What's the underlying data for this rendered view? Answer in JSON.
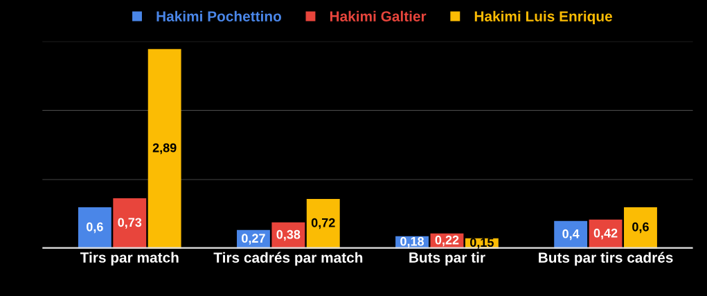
{
  "chart_data": {
    "type": "bar",
    "categories": [
      "Tirs par match",
      "Tirs cadrés par match",
      "Buts par tir",
      "Buts par tirs cadrés"
    ],
    "series": [
      {
        "name": "Hakimi Pochettino",
        "color": "#4a86e8",
        "values": [
          0.6,
          0.27,
          0.18,
          0.4
        ],
        "value_labels": [
          "0,6",
          "0,27",
          "0,18",
          "0,4"
        ]
      },
      {
        "name": "Hakimi Galtier",
        "color": "#e8453c",
        "values": [
          0.73,
          0.38,
          0.22,
          0.42
        ],
        "value_labels": [
          "0,73",
          "0,38",
          "0,22",
          "0,42"
        ]
      },
      {
        "name": "Hakimi Luis Enrique",
        "color": "#fbbc04",
        "values": [
          2.89,
          0.72,
          0.15,
          0.6
        ],
        "value_labels": [
          "2,89",
          "0,72",
          "0,15",
          "0,6"
        ]
      }
    ],
    "ylim": [
      0,
      3
    ],
    "yticks": [
      {
        "value": 0,
        "label": null
      },
      {
        "value": 1,
        "label": null
      },
      {
        "value": 2,
        "label": null
      },
      {
        "value": 3,
        "label": null
      }
    ],
    "grid": "y",
    "legend": "top",
    "tick_labels": "x"
  }
}
